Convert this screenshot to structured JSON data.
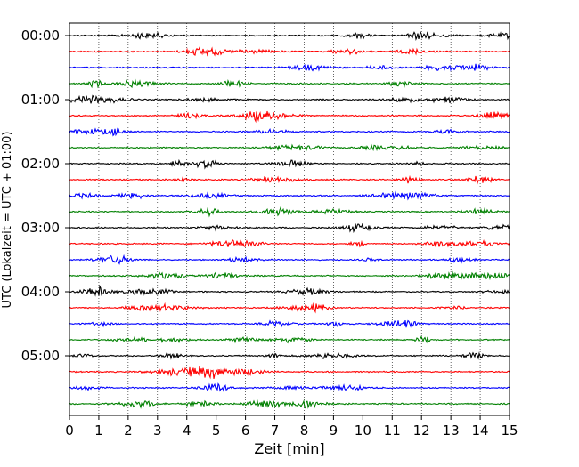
{
  "chart_data": {
    "type": "line",
    "xlabel": "Zeit  [min]",
    "ylabel": "UTC (Lokalzeit = UTC + 01:00)",
    "xlim": [
      0,
      15
    ],
    "x_ticks": [
      "0",
      "1",
      "2",
      "3",
      "4",
      "5",
      "6",
      "7",
      "8",
      "9",
      "10",
      "11",
      "12",
      "13",
      "14",
      "15"
    ],
    "y_tick_labels": [
      "00:00",
      "01:00",
      "02:00",
      "03:00",
      "04:00",
      "05:00"
    ],
    "trace_minutes": 15,
    "trace_count": 24,
    "trace_colors": [
      "#000000",
      "#ff0000",
      "#0000ff",
      "#008000"
    ],
    "vertical_grid": "dotted",
    "amplitude": "small noise"
  }
}
